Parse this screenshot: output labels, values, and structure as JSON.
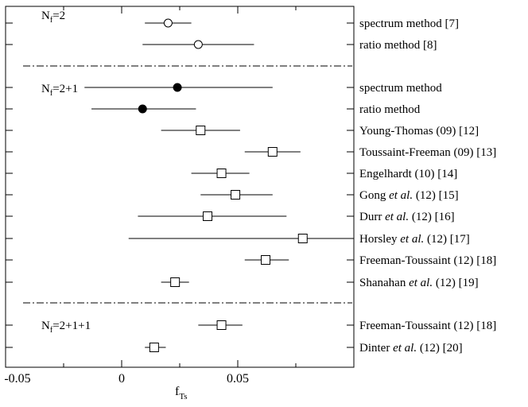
{
  "chart_data": {
    "type": "scatter",
    "xlabel_main": "f",
    "xlabel_sub": "Ts",
    "xlim": [
      -0.05,
      0.1
    ],
    "xticks": [
      {
        "value": -0.05,
        "label": "-0.05"
      },
      {
        "value": 0,
        "label": "0"
      },
      {
        "value": 0.05,
        "label": "0.05"
      }
    ],
    "groups": [
      {
        "label_main": "N",
        "label_sub": "f",
        "label_rest": "=2"
      },
      {
        "label_main": "N",
        "label_sub": "f",
        "label_rest": "=2+1"
      },
      {
        "label_main": "N",
        "label_sub": "f",
        "label_rest": "=2+1+1"
      }
    ],
    "points": [
      {
        "group": 0,
        "label": [
          {
            "t": "spectrum method [7]"
          }
        ],
        "value": 0.02,
        "lo": 0.01,
        "hi": 0.03,
        "marker": "open-circle"
      },
      {
        "group": 0,
        "label": [
          {
            "t": "ratio method [8]"
          }
        ],
        "value": 0.033,
        "lo": 0.009,
        "hi": 0.057,
        "marker": "open-circle"
      },
      {
        "group": 1,
        "label": [
          {
            "t": "spectrum method"
          }
        ],
        "value": 0.024,
        "lo": -0.016,
        "hi": 0.065,
        "marker": "filled-circle"
      },
      {
        "group": 1,
        "label": [
          {
            "t": "ratio method"
          }
        ],
        "value": 0.009,
        "lo": -0.013,
        "hi": 0.032,
        "marker": "filled-circle"
      },
      {
        "group": 1,
        "label": [
          {
            "t": "Young-Thomas (09) [12]"
          }
        ],
        "value": 0.034,
        "lo": 0.017,
        "hi": 0.051,
        "marker": "open-square"
      },
      {
        "group": 1,
        "label": [
          {
            "t": "Toussaint-Freeman (09) [13]"
          }
        ],
        "value": 0.065,
        "lo": 0.053,
        "hi": 0.077,
        "marker": "open-square"
      },
      {
        "group": 1,
        "label": [
          {
            "t": "Engelhardt (10) [14]"
          }
        ],
        "value": 0.043,
        "lo": 0.03,
        "hi": 0.055,
        "marker": "open-square"
      },
      {
        "group": 1,
        "label": [
          {
            "t": "Gong "
          },
          {
            "t": "et al.",
            "i": true
          },
          {
            "t": " (12) [15]"
          }
        ],
        "value": 0.049,
        "lo": 0.034,
        "hi": 0.065,
        "marker": "open-square"
      },
      {
        "group": 1,
        "label": [
          {
            "t": "Durr "
          },
          {
            "t": "et al.",
            "i": true
          },
          {
            "t": " (12) [16]"
          }
        ],
        "value": 0.037,
        "lo": 0.007,
        "hi": 0.071,
        "marker": "open-square"
      },
      {
        "group": 1,
        "label": [
          {
            "t": "Horsley "
          },
          {
            "t": "et al.",
            "i": true
          },
          {
            "t": " (12) [17]"
          }
        ],
        "value": 0.078,
        "lo": 0.003,
        "hi": 0.1,
        "marker": "open-square"
      },
      {
        "group": 1,
        "label": [
          {
            "t": "Freeman-Toussaint (12) [18]"
          }
        ],
        "value": 0.062,
        "lo": 0.053,
        "hi": 0.072,
        "marker": "open-square"
      },
      {
        "group": 1,
        "label": [
          {
            "t": "Shanahan "
          },
          {
            "t": "et al.",
            "i": true
          },
          {
            "t": " (12) [19]"
          }
        ],
        "value": 0.023,
        "lo": 0.017,
        "hi": 0.029,
        "marker": "open-square"
      },
      {
        "group": 2,
        "label": [
          {
            "t": "Freeman-Toussaint (12) [18]"
          }
        ],
        "value": 0.043,
        "lo": 0.033,
        "hi": 0.052,
        "marker": "open-square"
      },
      {
        "group": 2,
        "label": [
          {
            "t": "Dinter "
          },
          {
            "t": "et al.",
            "i": true
          },
          {
            "t": " (12) [20]"
          }
        ],
        "value": 0.014,
        "lo": 0.01,
        "hi": 0.019,
        "marker": "open-square"
      }
    ]
  }
}
